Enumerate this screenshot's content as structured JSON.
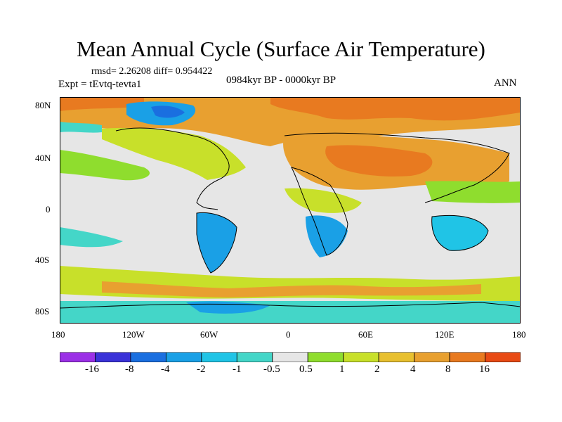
{
  "title": "Mean Annual Cycle (Surface Air Temperature)",
  "stats": "rmsd= 2.26208 diff= 0.954422",
  "experiment": "Expt = tEvtq-tevta1",
  "period": "0984kyr BP - 0000kyr BP",
  "season": "ANN",
  "lat_labels": [
    "80N",
    "40N",
    "0",
    "40S",
    "80S"
  ],
  "lon_labels": [
    "180",
    "120W",
    "60W",
    "0",
    "60E",
    "120E",
    "180"
  ],
  "colorbar": {
    "colors": [
      "#9b30e6",
      "#3a32d8",
      "#1a6fe0",
      "#1aa0e6",
      "#20c4e6",
      "#44d6c8",
      "#e6e6e6",
      "#8fdd2e",
      "#c8e02a",
      "#e8c030",
      "#e8a030",
      "#e87a20",
      "#e84a14"
    ],
    "labels": [
      "-16",
      "-8",
      "-4",
      "-2",
      "-1",
      "-0.5",
      "0.5",
      "1",
      "2",
      "4",
      "8",
      "16"
    ]
  },
  "palette": {
    "neutral": "#e6e6e6",
    "green": "#8fdd2e",
    "yellow": "#c8e02a",
    "orange": "#e8a030",
    "darkorange": "#e87a20",
    "red": "#e84a14",
    "lightblue": "#44d6c8",
    "blue": "#1aa0e6",
    "deepblue": "#1a6fe0"
  }
}
